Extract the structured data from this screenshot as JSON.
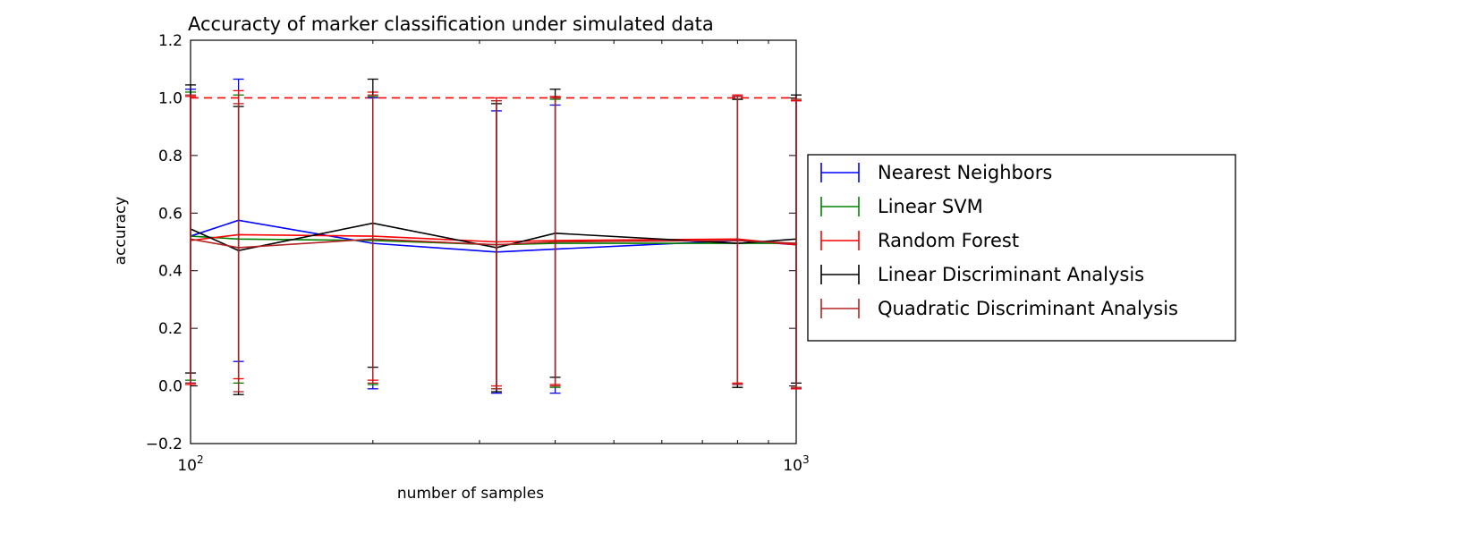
{
  "chart_data": {
    "type": "line",
    "title": "Accuracty of marker classification under simulated data",
    "xlabel": "number of samples",
    "ylabel": "accuracy",
    "xscale": "log",
    "xlim": [
      100,
      1000
    ],
    "ylim": [
      -0.2,
      1.2
    ],
    "yticks": [
      -0.2,
      0.0,
      0.2,
      0.4,
      0.6,
      0.8,
      1.0,
      1.2
    ],
    "ytick_labels": [
      "−0.2",
      "0.0",
      "0.2",
      "0.4",
      "0.6",
      "0.8",
      "1.0",
      "1.2"
    ],
    "xticks": [
      {
        "value": 100,
        "base": "10",
        "exp": "2"
      },
      {
        "value": 1000,
        "base": "10",
        "exp": "3"
      }
    ],
    "reference_line": {
      "y": 1.0,
      "style": "dashed",
      "color": "#ff0000"
    },
    "grid": false,
    "legend_position": "right, outside",
    "x": [
      100,
      120,
      200,
      320,
      400,
      800,
      1000
    ],
    "series": [
      {
        "name": "Nearest Neighbors",
        "color": "#0000ff",
        "values": [
          0.52,
          0.575,
          0.495,
          0.465,
          0.475,
          0.505,
          0.49
        ],
        "errors": [
          0.51,
          0.49,
          0.505,
          0.49,
          0.5,
          0.5,
          0.5
        ]
      },
      {
        "name": "Linear SVM",
        "color": "#008000",
        "values": [
          0.52,
          0.51,
          0.505,
          0.49,
          0.495,
          0.495,
          0.495
        ],
        "errors": [
          0.5,
          0.5,
          0.5,
          0.5,
          0.5,
          0.5,
          0.5
        ]
      },
      {
        "name": "Random Forest",
        "color": "#ff0000",
        "values": [
          0.505,
          0.525,
          0.52,
          0.5,
          0.505,
          0.51,
          0.49
        ],
        "errors": [
          0.5,
          0.5,
          0.5,
          0.5,
          0.5,
          0.5,
          0.5
        ]
      },
      {
        "name": "Linear Discriminant Analysis",
        "color": "#000000",
        "values": [
          0.545,
          0.47,
          0.565,
          0.48,
          0.53,
          0.495,
          0.51
        ],
        "errors": [
          0.5,
          0.5,
          0.5,
          0.5,
          0.5,
          0.5,
          0.5
        ]
      },
      {
        "name": "Quadratic Discriminant Analysis",
        "color": "#b22222",
        "values": [
          0.51,
          0.48,
          0.51,
          0.49,
          0.5,
          0.505,
          0.495
        ],
        "errors": [
          0.5,
          0.5,
          0.5,
          0.5,
          0.5,
          0.5,
          0.5
        ]
      }
    ]
  }
}
